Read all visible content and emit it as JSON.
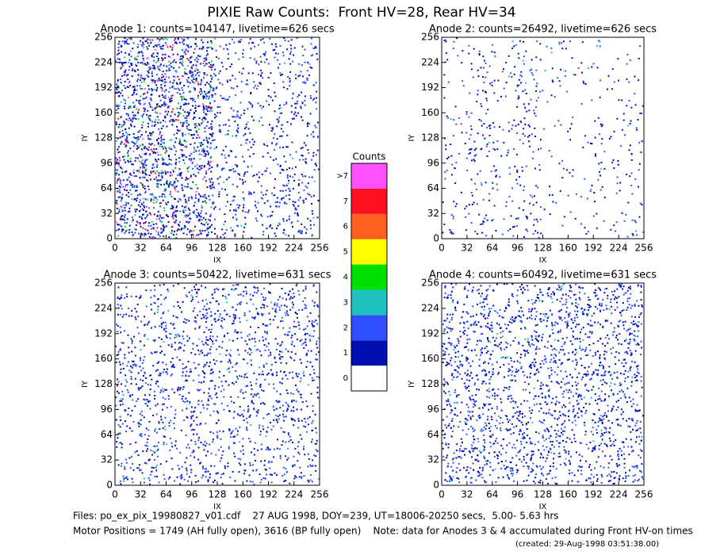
{
  "title": "PIXIE Raw Counts:  Front HV=28, Rear HV=34",
  "panels": [
    {
      "title": "Anode 1: counts=104147, livetime=626 secs",
      "xlabel": "IX",
      "ylabel": "IY",
      "xlim": [
        0,
        256
      ],
      "ylim": [
        0,
        256
      ],
      "xticks": [
        0,
        32,
        64,
        96,
        128,
        160,
        192,
        224,
        256
      ],
      "yticks": [
        0,
        32,
        64,
        96,
        128,
        160,
        192,
        224,
        256
      ]
    },
    {
      "title": "Anode 2: counts=26492, livetime=626 secs",
      "xlabel": "IX",
      "ylabel": "IY",
      "xlim": [
        0,
        256
      ],
      "ylim": [
        0,
        256
      ],
      "xticks": [
        0,
        32,
        64,
        96,
        128,
        160,
        192,
        224,
        256
      ],
      "yticks": [
        0,
        32,
        64,
        96,
        128,
        160,
        192,
        224,
        256
      ]
    },
    {
      "title": "Anode 3: counts=50422, livetime=631 secs",
      "xlabel": "IX",
      "ylabel": "IY",
      "xlim": [
        0,
        256
      ],
      "ylim": [
        0,
        256
      ],
      "xticks": [
        0,
        32,
        64,
        96,
        128,
        160,
        192,
        224,
        256
      ],
      "yticks": [
        0,
        32,
        64,
        96,
        128,
        160,
        192,
        224,
        256
      ]
    },
    {
      "title": "Anode 4: counts=60492, livetime=631 secs",
      "xlabel": "IX",
      "ylabel": "IY",
      "xlim": [
        0,
        256
      ],
      "ylim": [
        0,
        256
      ],
      "xticks": [
        0,
        32,
        64,
        96,
        128,
        160,
        192,
        224,
        256
      ],
      "yticks": [
        0,
        32,
        64,
        96,
        128,
        160,
        192,
        224,
        256
      ]
    }
  ],
  "colorbar": {
    "label": "Counts",
    "levels": [
      {
        "label": "0",
        "color": "#ffffff"
      },
      {
        "label": "1",
        "color": "#0010b0"
      },
      {
        "label": "2",
        "color": "#3050ff"
      },
      {
        "label": "3",
        "color": "#20c0c0"
      },
      {
        "label": "4",
        "color": "#00e000"
      },
      {
        "label": "5",
        "color": "#ffff00"
      },
      {
        "label": "6",
        "color": "#ff6020"
      },
      {
        "label": "7",
        "color": "#ff1020"
      },
      {
        "label": ">7",
        "color": "#ff50ff"
      }
    ]
  },
  "footer": [
    "Files: po_ex_pix_19980827_v01.cdf    27 AUG 1998, DOY=239, UT=18006-20250 secs,  5.00- 5.63 hrs",
    "Motor Positions = 1749 (AH fully open), 3616 (BP fully open)    Note: data for Anodes 3 & 4 accumulated during Front HV-on times",
    "(created: 29-Aug-1998 03:51:38.00)"
  ]
}
